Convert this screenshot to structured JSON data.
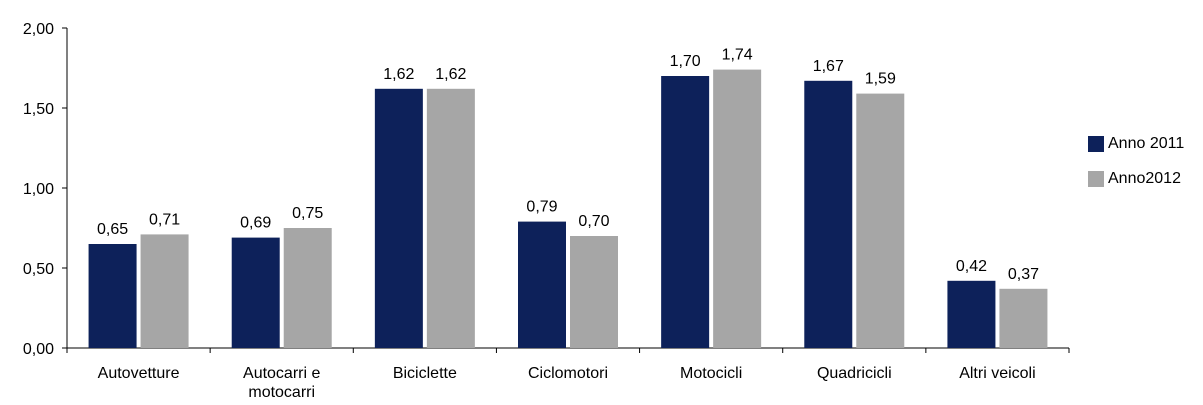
{
  "chart_data": {
    "type": "bar",
    "title": "",
    "xlabel": "",
    "ylabel": "",
    "categories": [
      [
        "Autovetture"
      ],
      [
        "Autocarri e",
        "motocarri"
      ],
      [
        "Biciclette"
      ],
      [
        "Ciclomotori"
      ],
      [
        "Motocicli"
      ],
      [
        "Quadricicli"
      ],
      [
        "Altri veicoli"
      ]
    ],
    "series": [
      {
        "name": "Anno 2011",
        "color": "#0d215a",
        "values": [
          0.65,
          0.69,
          1.62,
          0.79,
          1.7,
          1.67,
          0.42
        ],
        "labels": [
          "0,65",
          "0,69",
          "1,62",
          "0,79",
          "1,70",
          "1,67",
          "0,42"
        ]
      },
      {
        "name": "Anno2012",
        "color": "#a6a6a6",
        "values": [
          0.71,
          0.75,
          1.62,
          0.7,
          1.74,
          1.59,
          0.37
        ],
        "labels": [
          "0,71",
          "0,75",
          "1,62",
          "0,70",
          "1,74",
          "1,59",
          "0,37"
        ]
      }
    ],
    "ylim": [
      0,
      2
    ],
    "yticks": [
      0,
      0.5,
      1,
      1.5,
      2
    ],
    "ytick_labels": [
      "0,00",
      "0,50",
      "1,00",
      "1,50",
      "2,00"
    ],
    "grid": false,
    "legend_position": "right"
  }
}
